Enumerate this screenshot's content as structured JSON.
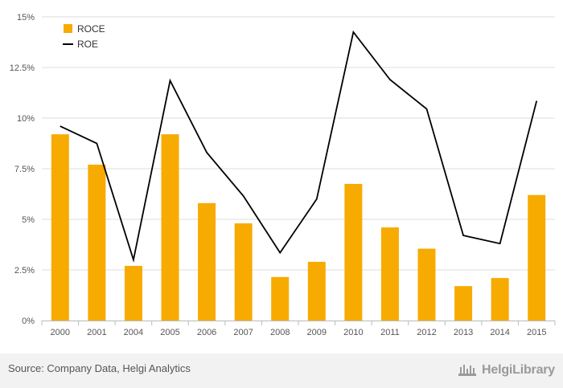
{
  "chart_data": {
    "type": "bar",
    "categories": [
      "2000",
      "2001",
      "2004",
      "2005",
      "2006",
      "2007",
      "2008",
      "2009",
      "2010",
      "2011",
      "2012",
      "2013",
      "2014",
      "2015"
    ],
    "series": [
      {
        "name": "ROCE",
        "type": "bar",
        "color": "#f7ab00",
        "values": [
          9.2,
          7.7,
          2.7,
          9.2,
          5.8,
          4.8,
          2.15,
          2.9,
          6.75,
          4.6,
          3.55,
          1.7,
          2.1,
          6.2
        ]
      },
      {
        "name": "ROE",
        "type": "line",
        "color": "#000000",
        "values": [
          9.6,
          8.75,
          3.0,
          11.85,
          8.3,
          6.15,
          3.35,
          6.0,
          14.25,
          11.9,
          10.45,
          4.2,
          3.8,
          10.85
        ]
      }
    ],
    "yticks": [
      "0%",
      "2.5%",
      "5%",
      "7.5%",
      "10%",
      "12.5%",
      "15%"
    ],
    "ylim": [
      0,
      15
    ],
    "grid": "horizontal",
    "legend": "top-left"
  },
  "legend": {
    "roce": "ROCE",
    "roe": "ROE"
  },
  "footer": {
    "source": "Source: Company Data, Helgi Analytics",
    "brand": "HelgiLibrary"
  },
  "colors": {
    "bar": "#f7ab00",
    "line": "#000000",
    "grid": "#dddddd"
  },
  "icons": {
    "brand": "helgi-library-logo-icon"
  }
}
